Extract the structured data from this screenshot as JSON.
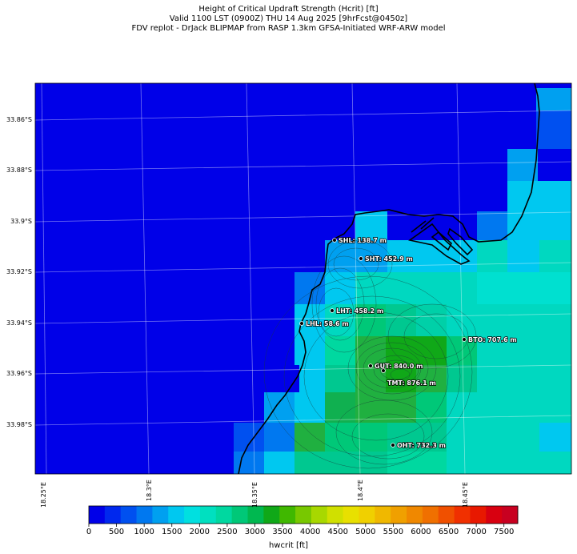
{
  "title": {
    "line1": "Height of Critical Updraft Strength (Hcrit) [ft]",
    "line2": "Valid 1100 LST (0900Z) THU 14 Aug 2025 [9hrFcst@0450z]",
    "line3": "FDV replot - DrJack BLIPMAP from RASP 1.3km GFSA-Initiated WRF-ARW model"
  },
  "axes": {
    "lat_labels": [
      "33.86°S",
      "33.88°S",
      "33.9°S",
      "33.92°S",
      "33.94°S",
      "33.96°S",
      "33.98°S"
    ],
    "lon_labels": [
      "18.25°E",
      "18.3°E",
      "18.35°E",
      "18.4°E",
      "18.45°E"
    ]
  },
  "sites": [
    {
      "label": "SHL: 138.7 m"
    },
    {
      "label": "SHT: 452.9 m"
    },
    {
      "label": "LHT: 458.2 m"
    },
    {
      "label": "LHL: 58.6 m"
    },
    {
      "label": "BTO: 707.6 m"
    },
    {
      "label": "GUT: 840.0 m"
    },
    {
      "label": "TMT: 876.1 m"
    },
    {
      "label": "OHT: 732.3 m"
    }
  ],
  "colorbar": {
    "label": "hwcrit [ft]",
    "ticks": [
      "0",
      "500",
      "1000",
      "1500",
      "2000",
      "2500",
      "3000",
      "3500",
      "4000",
      "4500",
      "5000",
      "5500",
      "6000",
      "6500",
      "7000",
      "7500"
    ],
    "colors": [
      "#0000e8",
      "#0028ee",
      "#0050f0",
      "#0078f0",
      "#00a0f0",
      "#00c8f0",
      "#00e0e0",
      "#00e0c0",
      "#00d8a0",
      "#00c878",
      "#00b850",
      "#10a818",
      "#40b800",
      "#78c800",
      "#a8d800",
      "#d0e000",
      "#e8e000",
      "#f0d000",
      "#f0b800",
      "#f0a000",
      "#f08800",
      "#f07000",
      "#f05000",
      "#f03000",
      "#e81800",
      "#d80010",
      "#c80020"
    ]
  }
}
